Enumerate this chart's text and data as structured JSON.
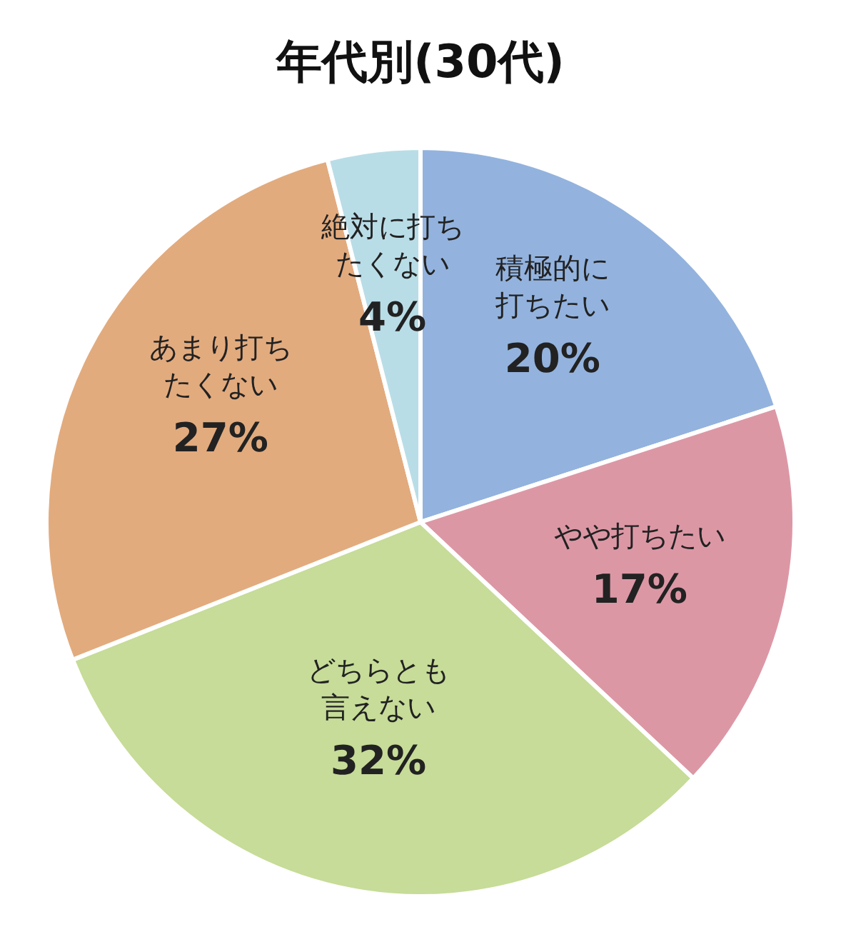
{
  "chart_data": {
    "type": "pie",
    "title": "年代別(30代)",
    "categories": [
      "積極的に打ちたい",
      "やや打ちたい",
      "どちらとも言えない",
      "あまり打ちたくない",
      "絶対に打ちたくない"
    ],
    "values": [
      20,
      17,
      32,
      27,
      4
    ],
    "value_labels": [
      "20%",
      "17%",
      "32%",
      "27%",
      "4%"
    ],
    "colors": [
      "#93b3de",
      "#dc97a5",
      "#c6dc98",
      "#e2ab7e",
      "#b9dde7"
    ],
    "legend": false
  }
}
